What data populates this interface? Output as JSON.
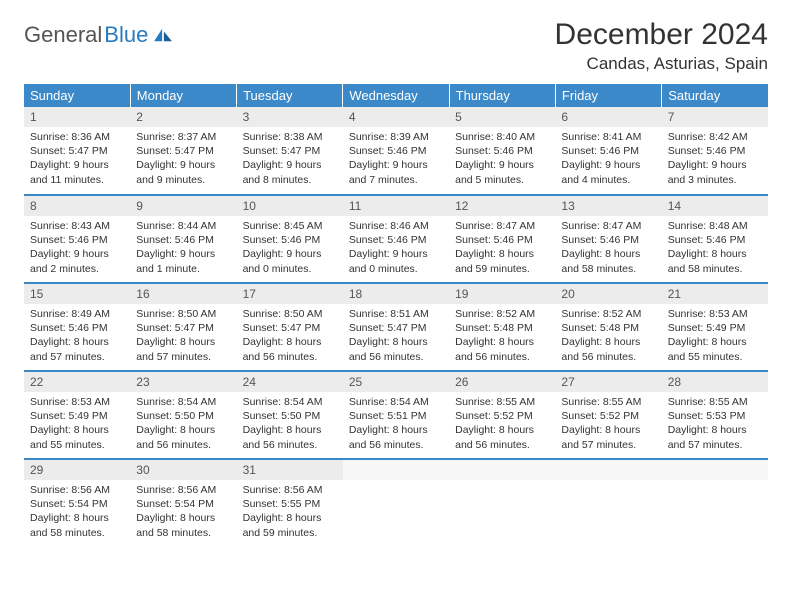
{
  "logo": {
    "text1": "General",
    "text2": "Blue"
  },
  "header": {
    "month_title": "December 2024",
    "location": "Candas, Asturias, Spain"
  },
  "colors": {
    "header_bg": "#3b89c9",
    "header_text": "#ffffff",
    "daynum_bg": "#ececec",
    "row_divider": "#3b89c9",
    "body_text": "#333333"
  },
  "weekdays": [
    "Sunday",
    "Monday",
    "Tuesday",
    "Wednesday",
    "Thursday",
    "Friday",
    "Saturday"
  ],
  "weeks": [
    [
      {
        "n": "1",
        "sr": "Sunrise: 8:36 AM",
        "ss": "Sunset: 5:47 PM",
        "d1": "Daylight: 9 hours",
        "d2": "and 11 minutes."
      },
      {
        "n": "2",
        "sr": "Sunrise: 8:37 AM",
        "ss": "Sunset: 5:47 PM",
        "d1": "Daylight: 9 hours",
        "d2": "and 9 minutes."
      },
      {
        "n": "3",
        "sr": "Sunrise: 8:38 AM",
        "ss": "Sunset: 5:47 PM",
        "d1": "Daylight: 9 hours",
        "d2": "and 8 minutes."
      },
      {
        "n": "4",
        "sr": "Sunrise: 8:39 AM",
        "ss": "Sunset: 5:46 PM",
        "d1": "Daylight: 9 hours",
        "d2": "and 7 minutes."
      },
      {
        "n": "5",
        "sr": "Sunrise: 8:40 AM",
        "ss": "Sunset: 5:46 PM",
        "d1": "Daylight: 9 hours",
        "d2": "and 5 minutes."
      },
      {
        "n": "6",
        "sr": "Sunrise: 8:41 AM",
        "ss": "Sunset: 5:46 PM",
        "d1": "Daylight: 9 hours",
        "d2": "and 4 minutes."
      },
      {
        "n": "7",
        "sr": "Sunrise: 8:42 AM",
        "ss": "Sunset: 5:46 PM",
        "d1": "Daylight: 9 hours",
        "d2": "and 3 minutes."
      }
    ],
    [
      {
        "n": "8",
        "sr": "Sunrise: 8:43 AM",
        "ss": "Sunset: 5:46 PM",
        "d1": "Daylight: 9 hours",
        "d2": "and 2 minutes."
      },
      {
        "n": "9",
        "sr": "Sunrise: 8:44 AM",
        "ss": "Sunset: 5:46 PM",
        "d1": "Daylight: 9 hours",
        "d2": "and 1 minute."
      },
      {
        "n": "10",
        "sr": "Sunrise: 8:45 AM",
        "ss": "Sunset: 5:46 PM",
        "d1": "Daylight: 9 hours",
        "d2": "and 0 minutes."
      },
      {
        "n": "11",
        "sr": "Sunrise: 8:46 AM",
        "ss": "Sunset: 5:46 PM",
        "d1": "Daylight: 9 hours",
        "d2": "and 0 minutes."
      },
      {
        "n": "12",
        "sr": "Sunrise: 8:47 AM",
        "ss": "Sunset: 5:46 PM",
        "d1": "Daylight: 8 hours",
        "d2": "and 59 minutes."
      },
      {
        "n": "13",
        "sr": "Sunrise: 8:47 AM",
        "ss": "Sunset: 5:46 PM",
        "d1": "Daylight: 8 hours",
        "d2": "and 58 minutes."
      },
      {
        "n": "14",
        "sr": "Sunrise: 8:48 AM",
        "ss": "Sunset: 5:46 PM",
        "d1": "Daylight: 8 hours",
        "d2": "and 58 minutes."
      }
    ],
    [
      {
        "n": "15",
        "sr": "Sunrise: 8:49 AM",
        "ss": "Sunset: 5:46 PM",
        "d1": "Daylight: 8 hours",
        "d2": "and 57 minutes."
      },
      {
        "n": "16",
        "sr": "Sunrise: 8:50 AM",
        "ss": "Sunset: 5:47 PM",
        "d1": "Daylight: 8 hours",
        "d2": "and 57 minutes."
      },
      {
        "n": "17",
        "sr": "Sunrise: 8:50 AM",
        "ss": "Sunset: 5:47 PM",
        "d1": "Daylight: 8 hours",
        "d2": "and 56 minutes."
      },
      {
        "n": "18",
        "sr": "Sunrise: 8:51 AM",
        "ss": "Sunset: 5:47 PM",
        "d1": "Daylight: 8 hours",
        "d2": "and 56 minutes."
      },
      {
        "n": "19",
        "sr": "Sunrise: 8:52 AM",
        "ss": "Sunset: 5:48 PM",
        "d1": "Daylight: 8 hours",
        "d2": "and 56 minutes."
      },
      {
        "n": "20",
        "sr": "Sunrise: 8:52 AM",
        "ss": "Sunset: 5:48 PM",
        "d1": "Daylight: 8 hours",
        "d2": "and 56 minutes."
      },
      {
        "n": "21",
        "sr": "Sunrise: 8:53 AM",
        "ss": "Sunset: 5:49 PM",
        "d1": "Daylight: 8 hours",
        "d2": "and 55 minutes."
      }
    ],
    [
      {
        "n": "22",
        "sr": "Sunrise: 8:53 AM",
        "ss": "Sunset: 5:49 PM",
        "d1": "Daylight: 8 hours",
        "d2": "and 55 minutes."
      },
      {
        "n": "23",
        "sr": "Sunrise: 8:54 AM",
        "ss": "Sunset: 5:50 PM",
        "d1": "Daylight: 8 hours",
        "d2": "and 56 minutes."
      },
      {
        "n": "24",
        "sr": "Sunrise: 8:54 AM",
        "ss": "Sunset: 5:50 PM",
        "d1": "Daylight: 8 hours",
        "d2": "and 56 minutes."
      },
      {
        "n": "25",
        "sr": "Sunrise: 8:54 AM",
        "ss": "Sunset: 5:51 PM",
        "d1": "Daylight: 8 hours",
        "d2": "and 56 minutes."
      },
      {
        "n": "26",
        "sr": "Sunrise: 8:55 AM",
        "ss": "Sunset: 5:52 PM",
        "d1": "Daylight: 8 hours",
        "d2": "and 56 minutes."
      },
      {
        "n": "27",
        "sr": "Sunrise: 8:55 AM",
        "ss": "Sunset: 5:52 PM",
        "d1": "Daylight: 8 hours",
        "d2": "and 57 minutes."
      },
      {
        "n": "28",
        "sr": "Sunrise: 8:55 AM",
        "ss": "Sunset: 5:53 PM",
        "d1": "Daylight: 8 hours",
        "d2": "and 57 minutes."
      }
    ],
    [
      {
        "n": "29",
        "sr": "Sunrise: 8:56 AM",
        "ss": "Sunset: 5:54 PM",
        "d1": "Daylight: 8 hours",
        "d2": "and 58 minutes."
      },
      {
        "n": "30",
        "sr": "Sunrise: 8:56 AM",
        "ss": "Sunset: 5:54 PM",
        "d1": "Daylight: 8 hours",
        "d2": "and 58 minutes."
      },
      {
        "n": "31",
        "sr": "Sunrise: 8:56 AM",
        "ss": "Sunset: 5:55 PM",
        "d1": "Daylight: 8 hours",
        "d2": "and 59 minutes."
      },
      null,
      null,
      null,
      null
    ]
  ]
}
